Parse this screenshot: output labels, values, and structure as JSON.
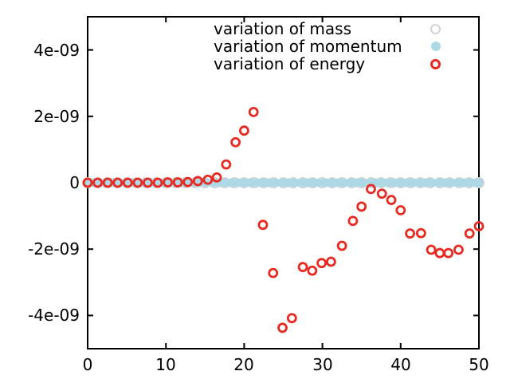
{
  "chart_data": {
    "type": "scatter",
    "title": "",
    "xlabel": "",
    "ylabel": "",
    "xlim": [
      0,
      50
    ],
    "ylim": [
      -5e-09,
      5e-09
    ],
    "grid": false,
    "border_box": true,
    "tick_style": "inward-mirrored",
    "xticks": {
      "values": [
        0,
        10,
        20,
        30,
        40,
        50
      ],
      "labels": [
        "0",
        "10",
        "20",
        "30",
        "40",
        "50"
      ]
    },
    "yticks": {
      "values": [
        4e-09,
        2e-09,
        0,
        -2e-09,
        -4e-09
      ],
      "labels": [
        "4e-09",
        "2e-09",
        "0",
        "-2e-09",
        "-4e-09"
      ]
    },
    "legend": {
      "position": "top-right-inside",
      "entries": [
        {
          "label": "variation of mass",
          "marker": "open-circle",
          "color": "#d3d3d3"
        },
        {
          "label": "variation of momentum",
          "marker": "filled-circle",
          "color": "#add8e6"
        },
        {
          "label": "variation of energy",
          "marker": "open-circle",
          "color": "#e72a22"
        }
      ]
    },
    "series": [
      {
        "name": "variation of mass",
        "marker": "open-circle",
        "color": "#d3d3d3",
        "y_const": 0,
        "x": [
          0,
          1.25,
          2.5,
          3.75,
          5,
          6.25,
          7.5,
          8.75,
          10,
          11.25,
          12.5,
          13.75,
          15,
          16.25,
          17.5,
          18.75,
          20,
          21.25,
          22.5,
          23.75,
          25,
          26.25,
          27.5,
          28.75,
          30,
          31.25,
          32.5,
          33.75,
          35,
          36.25,
          37.5,
          38.75,
          40,
          41.25,
          42.5,
          43.75,
          45,
          46.25,
          47.5,
          48.75,
          50
        ]
      },
      {
        "name": "variation of momentum",
        "marker": "filled-circle",
        "color": "#add8e6",
        "y_const": 0,
        "x": [
          0,
          0.8,
          1.6,
          2.4,
          3.2,
          4,
          4.8,
          5.6,
          6.4,
          7.2,
          8,
          8.8,
          9.6,
          10.4,
          11.2,
          12,
          12.8,
          13.6,
          14.4,
          15.2,
          16,
          16.8,
          17.6,
          18.4,
          19.2,
          20,
          20.8,
          21.6,
          22.4,
          23.2,
          24,
          24.8,
          25.6,
          26.4,
          27.2,
          28,
          28.8,
          29.6,
          30.4,
          31.2,
          32,
          32.8,
          33.6,
          34.4,
          35.2,
          36,
          36.8,
          37.6,
          38.4,
          39.2,
          40,
          40.8,
          41.6,
          42.4,
          43.2,
          44,
          44.8,
          45.6,
          46.4,
          47.2,
          48,
          48.8,
          49.6,
          50
        ]
      },
      {
        "name": "variation of energy",
        "marker": "open-circle",
        "color": "#e72a22",
        "points": [
          [
            0,
            0
          ],
          [
            1.28,
            0
          ],
          [
            2.56,
            0
          ],
          [
            3.84,
            0
          ],
          [
            5.12,
            0
          ],
          [
            6.4,
            0
          ],
          [
            7.68,
            0
          ],
          [
            8.96,
            0
          ],
          [
            10.24,
            1e-11
          ],
          [
            11.52,
            1e-11
          ],
          [
            12.8,
            2e-11
          ],
          [
            14.08,
            5e-11
          ],
          [
            15.36,
            9e-11
          ],
          [
            16.5,
            1.6e-10
          ],
          [
            17.7,
            5.5e-10
          ],
          [
            18.9,
            1.22e-09
          ],
          [
            20.0,
            1.57e-09
          ],
          [
            21.2,
            2.13e-09
          ],
          [
            22.4,
            -1.27e-09
          ],
          [
            23.7,
            -2.72e-09
          ],
          [
            24.9,
            -4.37e-09
          ],
          [
            26.1,
            -4.08e-09
          ],
          [
            27.5,
            -2.54e-09
          ],
          [
            28.7,
            -2.65e-09
          ],
          [
            29.9,
            -2.42e-09
          ],
          [
            31.1,
            -2.38e-09
          ],
          [
            32.5,
            -1.9e-09
          ],
          [
            33.9,
            -1.15e-09
          ],
          [
            35.0,
            -7.2e-10
          ],
          [
            36.2,
            -1.9e-10
          ],
          [
            37.6,
            -3.3e-10
          ],
          [
            38.8,
            -5.2e-10
          ],
          [
            40.0,
            -8.3e-10
          ],
          [
            41.2,
            -1.53e-09
          ],
          [
            42.6,
            -1.52e-09
          ],
          [
            43.9,
            -2.02e-09
          ],
          [
            45.0,
            -2.12e-09
          ],
          [
            46.1,
            -2.12e-09
          ],
          [
            47.4,
            -2.02e-09
          ],
          [
            48.8,
            -1.53e-09
          ],
          [
            50.0,
            -1.31e-09
          ]
        ]
      }
    ]
  }
}
